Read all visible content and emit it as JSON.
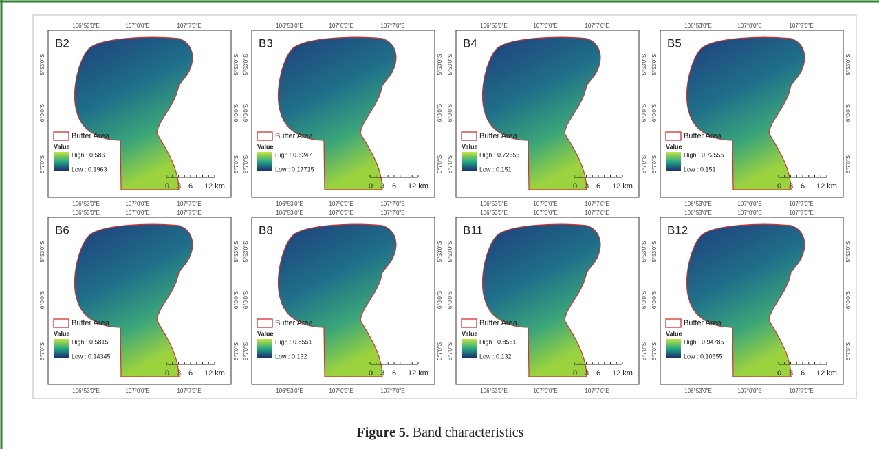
{
  "figure": {
    "x_coords": [
      "106°53'0\"E",
      "107°0'0\"E",
      "107°7'0\"E"
    ],
    "y_coords": [
      "5°53'0\"S",
      "6°0'0\"S",
      "6°7'0\"S"
    ],
    "legend_buffer": "Buffer Area",
    "legend_value": "Value",
    "scale_labels": [
      "0",
      "3",
      "6",
      "12 km"
    ],
    "panels": [
      {
        "label": "B2",
        "high": "High : 0.586",
        "low": "Low : 0.1963"
      },
      {
        "label": "B3",
        "high": "High : 0.6247",
        "low": "Low : 0.17715"
      },
      {
        "label": "B4",
        "high": "High : 0.72555",
        "low": "Low : 0.151"
      },
      {
        "label": "B5",
        "high": "High : 0.72555",
        "low": "Low : 0.151"
      },
      {
        "label": "B6",
        "high": "High : 0.5815",
        "low": "Low : 0.14345"
      },
      {
        "label": "B8",
        "high": "High : 0.8551",
        "low": "Low : 0.132"
      },
      {
        "label": "B11",
        "high": "High : 0.8551",
        "low": "Low : 0.132"
      },
      {
        "label": "B12",
        "high": "High : 0.94785",
        "low": "Low : 0.10555"
      }
    ],
    "caption_label": "Figure 5",
    "caption_text": ". Band characteristics"
  }
}
